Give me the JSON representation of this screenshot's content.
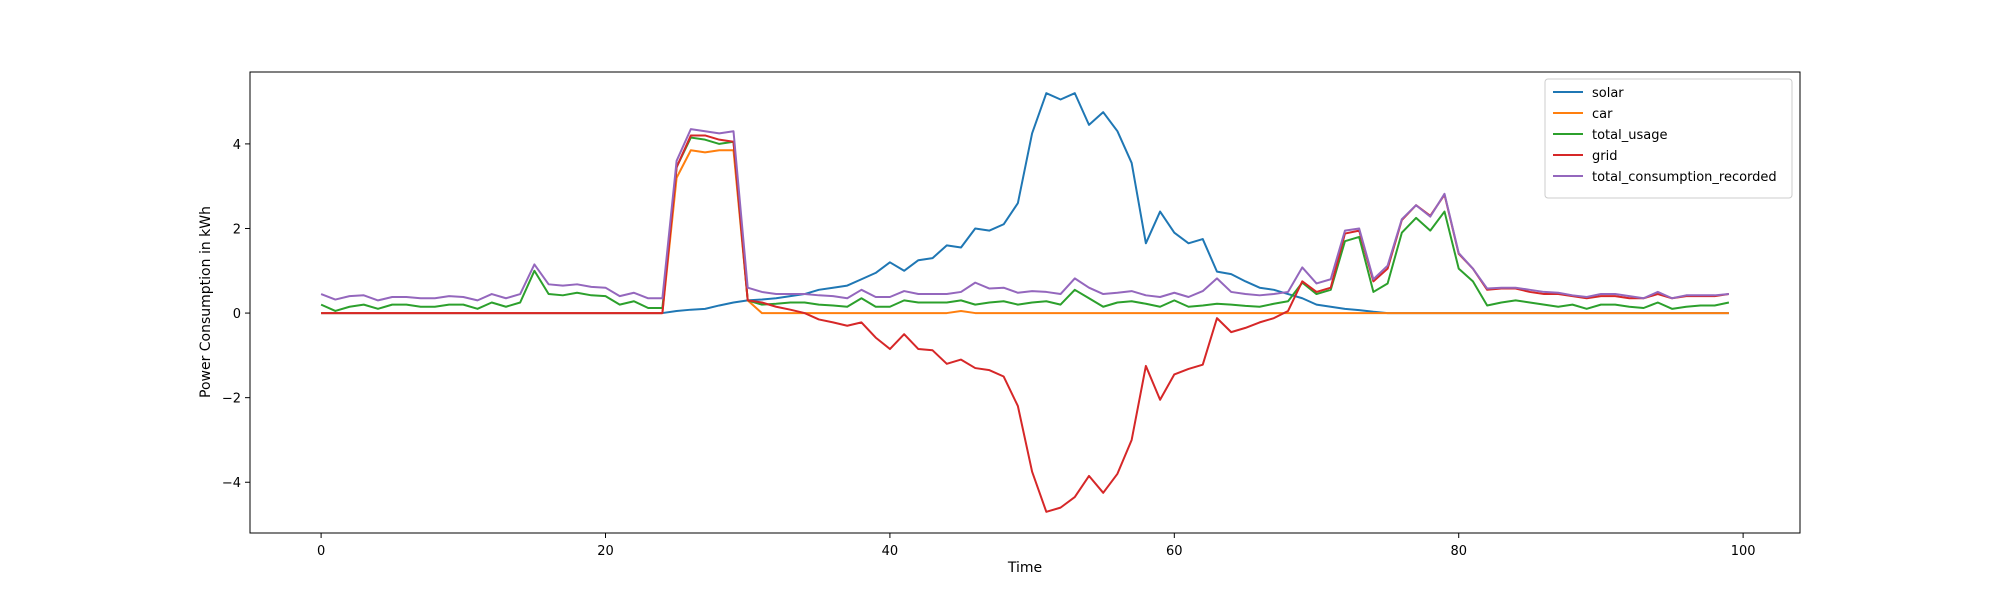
{
  "chart_data": {
    "type": "line",
    "title": "",
    "xlabel": "Time",
    "ylabel": "Power Consumption in kWh",
    "xlim": [
      -5,
      104
    ],
    "ylim": [
      -5.2,
      5.7
    ],
    "xticks": [
      0,
      20,
      40,
      60,
      80,
      100
    ],
    "yticks": [
      -4,
      -2,
      0,
      2,
      4
    ],
    "grid": false,
    "legend_position": "top-right",
    "series": [
      {
        "name": "solar",
        "color": "#1f77b4",
        "values": [
          0,
          0,
          0,
          0,
          0,
          0,
          0,
          0,
          0,
          0,
          0,
          0,
          0,
          0,
          0,
          0,
          0,
          0,
          0,
          0,
          0,
          0,
          0,
          0,
          0,
          0.05,
          0.08,
          0.1,
          0.18,
          0.25,
          0.3,
          0.32,
          0.35,
          0.4,
          0.45,
          0.55,
          0.6,
          0.65,
          0.8,
          0.95,
          1.2,
          1.0,
          1.25,
          1.3,
          1.6,
          1.55,
          2.0,
          1.95,
          2.1,
          2.6,
          4.25,
          5.2,
          5.05,
          5.2,
          4.45,
          4.75,
          4.3,
          3.55,
          1.65,
          2.4,
          1.9,
          1.65,
          1.75,
          0.98,
          0.92,
          0.75,
          0.6,
          0.55,
          0.45,
          0.35,
          0.2,
          0.15,
          0.1,
          0.07,
          0.03,
          0,
          0,
          0,
          0,
          0,
          0,
          0,
          0,
          0,
          0,
          0,
          0,
          0,
          0,
          0,
          0,
          0,
          0,
          0,
          0,
          0,
          0,
          0,
          0,
          0
        ]
      },
      {
        "name": "car",
        "color": "#ff7f0e",
        "values": [
          0,
          0,
          0,
          0,
          0,
          0,
          0,
          0,
          0,
          0,
          0,
          0,
          0,
          0,
          0,
          0,
          0,
          0,
          0,
          0,
          0,
          0,
          0,
          0,
          0,
          3.2,
          3.85,
          3.8,
          3.85,
          3.85,
          0.3,
          0,
          0,
          0,
          0,
          0,
          0,
          0,
          0,
          0,
          0,
          0,
          0,
          0,
          0,
          0.05,
          0,
          0,
          0,
          0,
          0,
          0,
          0,
          0,
          0,
          0,
          0,
          0,
          0,
          0,
          0,
          0,
          0,
          0,
          0,
          0,
          0,
          0,
          0,
          0,
          0,
          0,
          0,
          0,
          0,
          0,
          0,
          0,
          0,
          0,
          0,
          0,
          0,
          0,
          0,
          0,
          0,
          0,
          0,
          0,
          0,
          0,
          0,
          0,
          0,
          0,
          0,
          0,
          0,
          0
        ]
      },
      {
        "name": "total_usage",
        "color": "#2ca02c",
        "values": [
          0.2,
          0.05,
          0.15,
          0.2,
          0.1,
          0.2,
          0.2,
          0.15,
          0.15,
          0.2,
          0.2,
          0.1,
          0.25,
          0.15,
          0.25,
          1.0,
          0.45,
          0.42,
          0.48,
          0.42,
          0.4,
          0.2,
          0.28,
          0.12,
          0.12,
          3.45,
          4.15,
          4.1,
          4.0,
          4.05,
          0.3,
          0.2,
          0.22,
          0.25,
          0.25,
          0.2,
          0.18,
          0.15,
          0.35,
          0.15,
          0.15,
          0.3,
          0.25,
          0.25,
          0.25,
          0.3,
          0.2,
          0.25,
          0.28,
          0.2,
          0.25,
          0.28,
          0.2,
          0.55,
          0.35,
          0.15,
          0.25,
          0.28,
          0.22,
          0.15,
          0.3,
          0.15,
          0.18,
          0.22,
          0.2,
          0.17,
          0.15,
          0.22,
          0.28,
          0.72,
          0.45,
          0.55,
          1.7,
          1.8,
          0.5,
          0.7,
          1.9,
          2.25,
          1.95,
          2.4,
          1.05,
          0.75,
          0.18,
          0.25,
          0.3,
          0.25,
          0.2,
          0.15,
          0.2,
          0.1,
          0.2,
          0.2,
          0.15,
          0.12,
          0.25,
          0.1,
          0.15,
          0.18,
          0.18,
          0.25
        ]
      },
      {
        "name": "grid",
        "color": "#d62728",
        "values": [
          0.0,
          0.0,
          0.0,
          0.0,
          0.0,
          0.0,
          0.0,
          0.0,
          0.0,
          0.0,
          0.0,
          0.0,
          0.0,
          0.0,
          0.0,
          0.0,
          0.0,
          0.0,
          0.0,
          0.0,
          0.0,
          0.0,
          0.0,
          0.0,
          0.0,
          3.45,
          4.2,
          4.2,
          4.1,
          4.05,
          0.3,
          0.25,
          0.15,
          0.08,
          0.0,
          -0.15,
          -0.22,
          -0.3,
          -0.22,
          -0.58,
          -0.85,
          -0.5,
          -0.85,
          -0.88,
          -1.2,
          -1.1,
          -1.3,
          -1.35,
          -1.5,
          -2.2,
          -3.75,
          -4.7,
          -4.6,
          -4.35,
          -3.85,
          -4.25,
          -3.8,
          -3.0,
          -1.25,
          -2.05,
          -1.45,
          -1.32,
          -1.22,
          -0.12,
          -0.45,
          -0.35,
          -0.22,
          -0.12,
          0.05,
          0.75,
          0.5,
          0.6,
          1.88,
          1.95,
          0.75,
          1.05,
          2.2,
          2.55,
          2.3,
          2.8,
          1.4,
          1.05,
          0.55,
          0.58,
          0.58,
          0.5,
          0.45,
          0.45,
          0.4,
          0.35,
          0.4,
          0.4,
          0.35,
          0.35,
          0.45,
          0.35,
          0.4,
          0.4,
          0.4,
          0.45
        ]
      },
      {
        "name": "total_consumption_recorded",
        "color": "#9467bd",
        "values": [
          0.45,
          0.32,
          0.4,
          0.42,
          0.3,
          0.38,
          0.38,
          0.35,
          0.35,
          0.4,
          0.38,
          0.3,
          0.45,
          0.35,
          0.45,
          1.15,
          0.68,
          0.65,
          0.68,
          0.62,
          0.6,
          0.4,
          0.48,
          0.35,
          0.35,
          3.6,
          4.35,
          4.3,
          4.25,
          4.3,
          0.6,
          0.5,
          0.45,
          0.45,
          0.45,
          0.42,
          0.4,
          0.35,
          0.55,
          0.38,
          0.38,
          0.52,
          0.45,
          0.45,
          0.45,
          0.5,
          0.72,
          0.58,
          0.6,
          0.48,
          0.52,
          0.5,
          0.45,
          0.82,
          0.6,
          0.45,
          0.48,
          0.52,
          0.42,
          0.38,
          0.48,
          0.38,
          0.52,
          0.82,
          0.5,
          0.45,
          0.42,
          0.45,
          0.5,
          1.08,
          0.7,
          0.8,
          1.95,
          2.0,
          0.8,
          1.12,
          2.22,
          2.55,
          2.28,
          2.82,
          1.42,
          1.05,
          0.58,
          0.6,
          0.6,
          0.55,
          0.5,
          0.48,
          0.42,
          0.38,
          0.45,
          0.45,
          0.4,
          0.35,
          0.5,
          0.35,
          0.42,
          0.42,
          0.42,
          0.45
        ]
      }
    ]
  }
}
